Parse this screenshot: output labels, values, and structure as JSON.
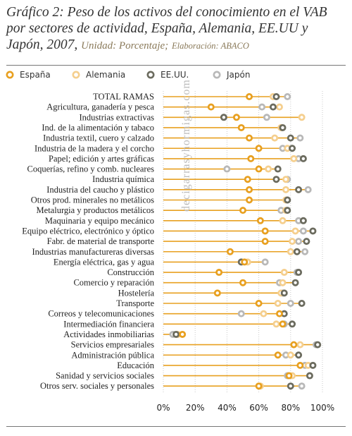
{
  "title": {
    "main": "Gráfico 2: Peso de los activos del conocimiento en el VAB por sectores de actividad,  España, Alemania, EE.UU y Japón, 2007,",
    "unit": "Unidad: Porcentaje;",
    "source": "Elaboración: ABACO"
  },
  "watermark": "decigarrasyhormigas.com",
  "colors": {
    "España": "#e8a020",
    "Alemania": "#f5cf8e",
    "EE.UU.": "#6b6b5e",
    "Japón": "#b8b8b8",
    "line": "#e8a020"
  },
  "chart_data": {
    "type": "scatter",
    "orientation": "horizontal dot plot",
    "xlim": [
      0,
      100
    ],
    "xticks": [
      "0%",
      "20%",
      "40%",
      "60%",
      "80%",
      "100%"
    ],
    "grid": true,
    "legend_position": "top",
    "series": [
      {
        "name": "España"
      },
      {
        "name": "Alemania"
      },
      {
        "name": "EE.UU."
      },
      {
        "name": "Japón"
      }
    ],
    "rows": [
      {
        "label": "TOTAL RAMAS",
        "values": [
          54,
          69,
          71,
          78
        ]
      },
      {
        "label": "Agricultura, ganadería y pesca",
        "values": [
          30,
          73,
          69,
          62
        ]
      },
      {
        "label": "Industrias extractivas",
        "values": [
          46,
          87,
          38,
          65
        ]
      },
      {
        "label": "Ind. de la alimentación y tabaco",
        "values": [
          49,
          74,
          75,
          74
        ]
      },
      {
        "label": "Industria textil, cuero y calzado",
        "values": [
          54,
          70,
          80,
          86
        ]
      },
      {
        "label": "Industria de la madera y el corcho",
        "values": [
          60,
          78,
          81,
          75
        ]
      },
      {
        "label": "Papel; edición y artes gráficas",
        "values": [
          55,
          82,
          88,
          85
        ]
      },
      {
        "label": "Coquerías, refino y comb. nucleares",
        "values": [
          60,
          66,
          72,
          40
        ]
      },
      {
        "label": "Industria química",
        "values": [
          53,
          77,
          71,
          78
        ]
      },
      {
        "label": "Industria del caucho y plástico",
        "values": [
          54,
          77,
          85,
          91
        ]
      },
      {
        "label": "Otros prod. minerales no metálicos",
        "values": [
          54,
          77,
          78,
          78
        ]
      },
      {
        "label": "Metalurgia y  productos metálicos",
        "values": [
          50,
          77,
          78,
          74
        ]
      },
      {
        "label": "Maquinaria y equipo mecánico",
        "values": [
          61,
          75,
          88,
          85
        ]
      },
      {
        "label": "Equipo eléctrico, electrónico y óptico",
        "values": [
          64,
          83,
          94,
          88
        ]
      },
      {
        "label": "Fabr. de material de transporte",
        "values": [
          64,
          81,
          90,
          85
        ]
      },
      {
        "label": "Industrias manufactureras diversas",
        "values": [
          42,
          80,
          84,
          89
        ]
      },
      {
        "label": "Energía eléctrica, gas y agua",
        "values": [
          51,
          53,
          49,
          64
        ]
      },
      {
        "label": "Construcción",
        "values": [
          35,
          76,
          85,
          84
        ]
      },
      {
        "label": "Comercio y reparación",
        "values": [
          50,
          75,
          83,
          73
        ]
      },
      {
        "label": "Hostelería",
        "values": [
          34,
          74,
          76,
          75
        ]
      },
      {
        "label": "Transporte",
        "values": [
          60,
          72,
          87,
          80
        ]
      },
      {
        "label": "Correos y telecomunicaciones",
        "values": [
          73,
          63,
          76,
          49
        ]
      },
      {
        "label": "Intermediación financiera",
        "values": [
          75,
          71,
          81,
          76
        ]
      },
      {
        "label": "Actividades inmobiliarias",
        "values": [
          12,
          9,
          8,
          6
        ]
      },
      {
        "label": "Servicios empresariales",
        "values": [
          82,
          86,
          97,
          96
        ]
      },
      {
        "label": "Administración pública",
        "values": [
          72,
          80,
          85,
          77
        ]
      },
      {
        "label": "Educación",
        "values": [
          86,
          91,
          94,
          89
        ]
      },
      {
        "label": "Sanidad y servicios sociales",
        "values": [
          79,
          81,
          92,
          78
        ]
      },
      {
        "label": "Otros serv. sociales y  personales",
        "values": [
          60,
          61,
          80,
          87
        ]
      }
    ]
  }
}
